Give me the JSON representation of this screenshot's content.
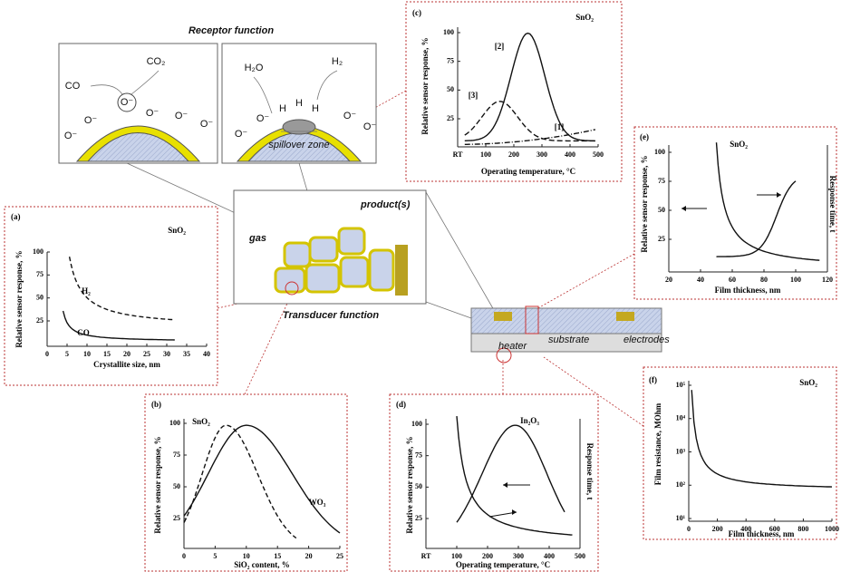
{
  "receptor": {
    "title": "Receptor function",
    "left_labels": [
      "CO",
      "CO₂",
      "O⁻",
      "O⁻",
      "O⁻",
      "O⁻",
      "O⁻",
      "O⁻"
    ],
    "right_labels": [
      "H₂O",
      "H₂",
      "H",
      "H",
      "H",
      "O⁻",
      "O⁻",
      "O⁻",
      "O⁻"
    ],
    "spillover": "spillover zone"
  },
  "transducer": {
    "title": "Transducer function",
    "product": "product(s)",
    "gas": "gas"
  },
  "device": {
    "heater": "heater",
    "substrate": "substrate",
    "electrodes": "electrodes"
  },
  "panels": [
    {
      "tag": "(a)",
      "material": "SnO₂",
      "ylabel": "Relative sensor response, %",
      "xlabel": "Crystallite size, nm",
      "yticks": [
        100,
        75,
        50,
        25
      ],
      "xticks": [
        0,
        5,
        10,
        15,
        20,
        25,
        30,
        35,
        40
      ],
      "curve_labels": [
        "H₂",
        "CO"
      ]
    },
    {
      "tag": "(b)",
      "ylabel": "Relative sensor response, %",
      "xlabel": "SiO₂ content, %",
      "yticks": [
        100,
        75,
        50,
        25
      ],
      "xticks": [
        0,
        5,
        10,
        15,
        20,
        25
      ],
      "curve_labels": [
        "SnO₂",
        "WO₃"
      ]
    },
    {
      "tag": "(c)",
      "material": "SnO₂",
      "ylabel": "Relative sensor response, %",
      "xlabel": "Operating temperature, °C",
      "yticks": [
        100,
        75,
        50,
        25
      ],
      "xticks": [
        "RT",
        100,
        200,
        300,
        400,
        500
      ],
      "curve_labels": [
        "[2]",
        "[3]",
        "[1]"
      ]
    },
    {
      "tag": "(d)",
      "material": "In₂O₃",
      "ylabel": "Relative sensor response, %",
      "y2label": "Response time, t",
      "xlabel": "Operating temperature, °C",
      "yticks": [
        100,
        75,
        50,
        25
      ],
      "xticks": [
        "RT",
        100,
        200,
        300,
        400,
        500
      ]
    },
    {
      "tag": "(e)",
      "material": "SnO₂",
      "ylabel": "Relative sensor response, %",
      "y2label": "Response time, t",
      "xlabel": "Film thickness, nm",
      "yticks": [
        100,
        75,
        50,
        25
      ],
      "xticks": [
        20,
        40,
        60,
        80,
        100,
        120
      ]
    },
    {
      "tag": "(f)",
      "material": "SnO₂",
      "ylabel": "Film resistance, MOhm",
      "xlabel": "Film thickness, nm",
      "yticks": [
        "10⁵",
        "10⁴",
        "10³",
        "10²",
        "10¹"
      ],
      "xticks": [
        0,
        200,
        400,
        600,
        800,
        1000
      ]
    }
  ]
}
